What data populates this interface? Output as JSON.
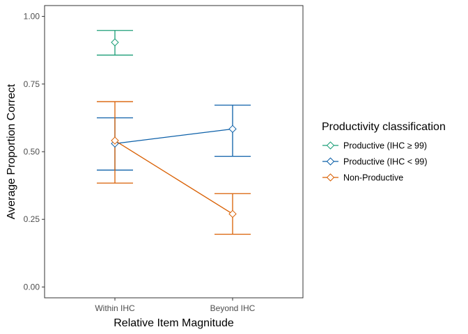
{
  "chart_data": {
    "type": "line",
    "xlabel": "Relative Item Magnitude",
    "ylabel": "Average Proportion Correct",
    "categories": [
      "Within IHC",
      "Beyond IHC"
    ],
    "ylim": [
      -0.04,
      1.04
    ],
    "yticks": [
      0.0,
      0.25,
      0.5,
      0.75,
      1.0
    ],
    "ytick_labels": [
      "0.00",
      "0.25",
      "0.50",
      "0.75",
      "1.00"
    ],
    "grid": false,
    "legend": {
      "title": "Productivity classification",
      "position": "right"
    },
    "marker": "open-diamond",
    "error_bars": true,
    "series": [
      {
        "name": "Productive (IHC ≥ 99)",
        "color": "#1b9e77",
        "points": [
          {
            "category": "Within IHC",
            "mean": 0.904,
            "lower": 0.857,
            "upper": 0.948
          }
        ]
      },
      {
        "name": "Productive (IHC < 99)",
        "color": "#0b5fa8",
        "points": [
          {
            "category": "Within IHC",
            "mean": 0.53,
            "lower": 0.432,
            "upper": 0.625
          },
          {
            "category": "Beyond IHC",
            "mean": 0.584,
            "lower": 0.483,
            "upper": 0.672
          }
        ]
      },
      {
        "name": "Non-Productive",
        "color": "#d95f02",
        "points": [
          {
            "category": "Within IHC",
            "mean": 0.541,
            "lower": 0.384,
            "upper": 0.685
          },
          {
            "category": "Beyond IHC",
            "mean": 0.27,
            "lower": 0.195,
            "upper": 0.345
          }
        ]
      }
    ]
  }
}
